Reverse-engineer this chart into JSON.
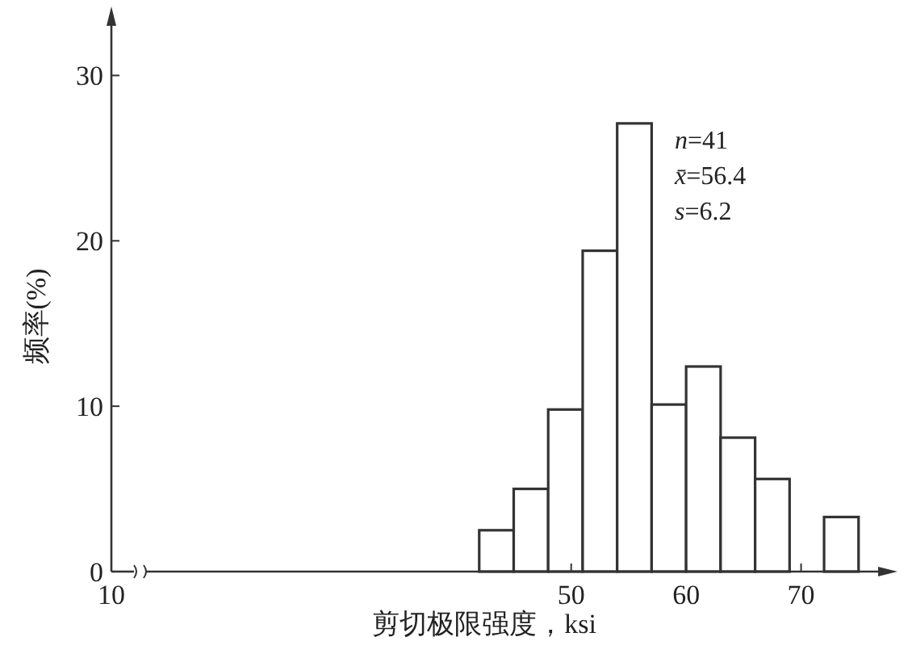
{
  "chart_data": {
    "type": "histogram",
    "bins": [
      42,
      45,
      48,
      51,
      54,
      57,
      60,
      63,
      66,
      69,
      72,
      75
    ],
    "values": [
      2.5,
      5,
      9.8,
      19.4,
      27.1,
      10.1,
      12.4,
      8.1,
      5.6,
      0,
      3.3
    ],
    "color": "#ffffff",
    "xlim": [
      10,
      76.7
    ],
    "xticks": [
      10,
      50,
      60,
      70
    ],
    "ylim": [
      0,
      33
    ],
    "yticks": [
      0,
      10,
      20,
      30
    ],
    "xlabel": "剪切极限强度，ksi",
    "ylabel": "频率(%)",
    "annotations": [
      "n=41",
      "x̄=56.4",
      "s=6.2"
    ]
  }
}
